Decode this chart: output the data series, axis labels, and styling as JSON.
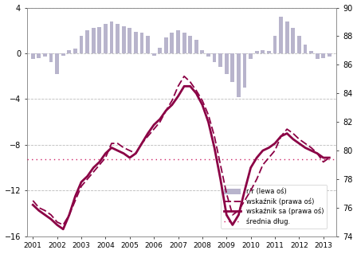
{
  "left_ylim": [
    -16,
    4
  ],
  "right_ylim": [
    74,
    90
  ],
  "bar_color": "#b8b4cc",
  "bar_edge_color": "#a0a0c0",
  "line1_color": "#8b0045",
  "line2_color": "#8b0045",
  "mean_color": "#cc2266",
  "mean_value": 79.4,
  "background_color": "#ffffff",
  "grid_color": "#aaaaaa",
  "xtick_labels": [
    "2001",
    "2002",
    "2003",
    "2004",
    "2005",
    "2006",
    "2007",
    "2008",
    "2009",
    "2010",
    "2011",
    "2012",
    "2013"
  ],
  "legend_labels": [
    "r/r (lewa oś)",
    "wskaźnik (prawa oś)",
    "wskaźnik sa (prawa oś)",
    "średnia dług."
  ],
  "bar_x": [
    2001.0,
    2001.25,
    2001.5,
    2001.75,
    2002.0,
    2002.25,
    2002.5,
    2002.75,
    2003.0,
    2003.25,
    2003.5,
    2003.75,
    2004.0,
    2004.25,
    2004.5,
    2004.75,
    2005.0,
    2005.25,
    2005.5,
    2005.75,
    2006.0,
    2006.25,
    2006.5,
    2006.75,
    2007.0,
    2007.25,
    2007.5,
    2007.75,
    2008.0,
    2008.25,
    2008.5,
    2008.75,
    2009.0,
    2009.25,
    2009.5,
    2009.75,
    2010.0,
    2010.25,
    2010.5,
    2010.75,
    2011.0,
    2011.25,
    2011.5,
    2011.75,
    2012.0,
    2012.25,
    2012.5,
    2012.75,
    2013.0,
    2013.25
  ],
  "bar_values": [
    -0.5,
    -0.4,
    -0.3,
    -0.8,
    -1.8,
    -0.2,
    0.3,
    0.4,
    1.5,
    2.0,
    2.2,
    2.3,
    2.6,
    2.8,
    2.6,
    2.4,
    2.2,
    1.9,
    1.8,
    1.5,
    -0.2,
    0.5,
    1.4,
    1.8,
    2.0,
    1.8,
    1.5,
    1.2,
    0.3,
    -0.3,
    -0.8,
    -1.2,
    -1.8,
    -2.5,
    -3.8,
    -3.0,
    -0.5,
    0.2,
    0.3,
    0.2,
    1.5,
    3.2,
    2.8,
    2.2,
    1.5,
    0.8,
    0.2,
    -0.5,
    -0.4,
    -0.3
  ],
  "line_x": [
    2001.0,
    2001.25,
    2001.5,
    2001.75,
    2002.0,
    2002.25,
    2002.5,
    2002.75,
    2003.0,
    2003.25,
    2003.5,
    2003.75,
    2004.0,
    2004.25,
    2004.5,
    2004.75,
    2005.0,
    2005.25,
    2005.5,
    2005.75,
    2006.0,
    2006.25,
    2006.5,
    2006.75,
    2007.0,
    2007.25,
    2007.5,
    2007.75,
    2008.0,
    2008.25,
    2008.5,
    2008.75,
    2009.0,
    2009.25,
    2009.5,
    2009.75,
    2010.0,
    2010.25,
    2010.5,
    2010.75,
    2011.0,
    2011.25,
    2011.5,
    2011.75,
    2012.0,
    2012.25,
    2012.5,
    2012.75,
    2013.0,
    2013.25
  ],
  "wskaznik_values": [
    76.5,
    76.0,
    75.8,
    75.5,
    75.0,
    74.8,
    75.5,
    76.5,
    77.5,
    78.0,
    78.5,
    79.0,
    79.5,
    80.5,
    80.5,
    80.2,
    80.0,
    79.8,
    80.5,
    81.0,
    81.5,
    82.0,
    82.8,
    83.5,
    84.5,
    85.2,
    84.8,
    84.2,
    83.5,
    82.5,
    81.0,
    79.0,
    77.0,
    75.5,
    75.8,
    76.5,
    77.2,
    78.0,
    79.0,
    79.5,
    80.0,
    81.0,
    81.5,
    81.2,
    80.8,
    80.5,
    80.2,
    79.8,
    79.2,
    79.5
  ],
  "wskaznik_sa_values": [
    76.2,
    75.8,
    75.5,
    75.2,
    74.8,
    74.5,
    75.5,
    76.8,
    77.8,
    78.2,
    78.8,
    79.2,
    79.8,
    80.2,
    80.0,
    79.8,
    79.5,
    79.8,
    80.5,
    81.2,
    81.8,
    82.2,
    82.8,
    83.2,
    83.8,
    84.5,
    84.5,
    84.0,
    83.2,
    82.0,
    80.2,
    78.0,
    75.5,
    74.8,
    75.5,
    77.2,
    78.8,
    79.5,
    80.0,
    80.2,
    80.5,
    81.0,
    81.2,
    80.8,
    80.5,
    80.2,
    80.0,
    79.8,
    79.5,
    79.5
  ]
}
